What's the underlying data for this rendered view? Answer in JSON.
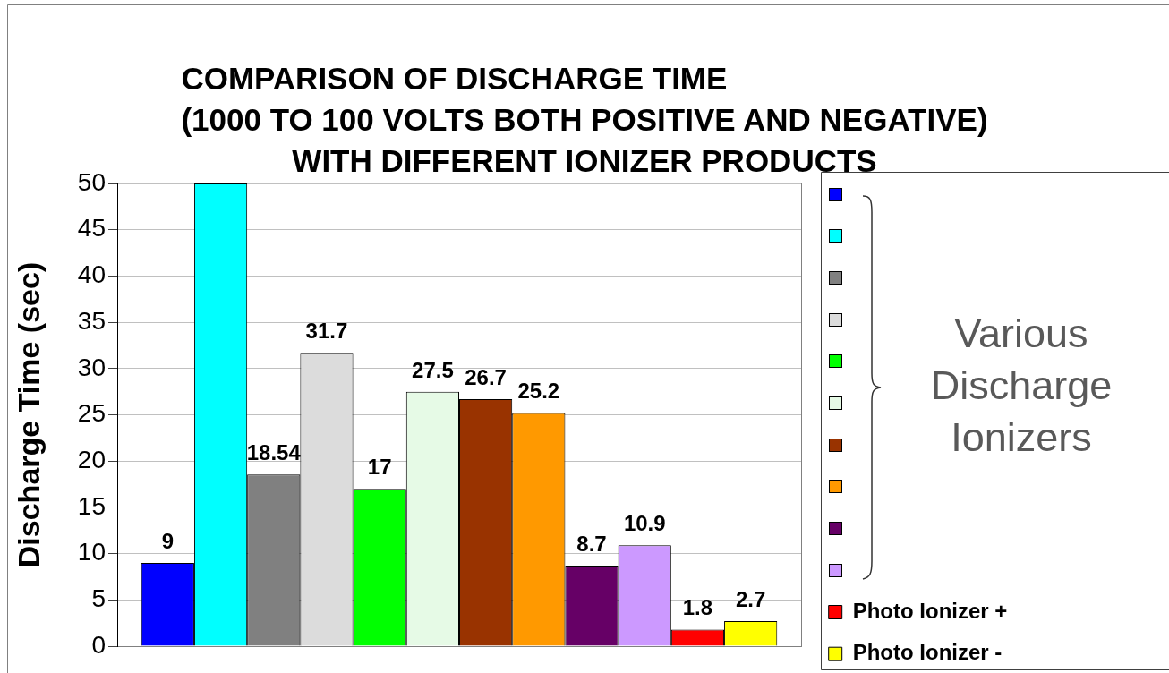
{
  "chart_data": {
    "type": "bar",
    "title": "COMPARISON OF DISCHARGE TIME\n(1000 TO 100 VOLTS BOTH POSITIVE AND NEGATIVE)\nWITH DIFFERENT IONIZER PRODUCTS",
    "ylabel": "Discharge Time (sec)",
    "categories": [
      null
    ],
    "series": [
      {
        "color": "#0000ff",
        "values": [
          9
        ],
        "value_labels": [
          "9"
        ]
      },
      {
        "color": "#00ffff",
        "values": [
          50
        ],
        "value_labels": [
          null
        ]
      },
      {
        "color": "#808080",
        "values": [
          18.54
        ],
        "value_labels": [
          "18.54"
        ]
      },
      {
        "color": "#dcdcdc",
        "values": [
          31.7
        ],
        "value_labels": [
          "31.7"
        ]
      },
      {
        "color": "#00ff00",
        "values": [
          17
        ],
        "value_labels": [
          "17"
        ]
      },
      {
        "color": "#e6fae6",
        "values": [
          27.5
        ],
        "value_labels": [
          "27.5"
        ]
      },
      {
        "color": "#993300",
        "values": [
          26.7
        ],
        "value_labels": [
          "26.7"
        ]
      },
      {
        "color": "#ff9900",
        "values": [
          25.2
        ],
        "value_labels": [
          "25.2"
        ]
      },
      {
        "color": "#660066",
        "values": [
          8.7
        ],
        "value_labels": [
          "8.7"
        ]
      },
      {
        "color": "#cc99ff",
        "values": [
          10.9
        ],
        "value_labels": [
          "10.9"
        ]
      },
      {
        "name": "Photo Ionizer +",
        "color": "#ff0000",
        "values": [
          1.8
        ],
        "value_labels": [
          "1.8"
        ]
      },
      {
        "name": "Photo Ionizer -",
        "color": "#ffff00",
        "values": [
          2.7
        ],
        "value_labels": [
          "2.7"
        ]
      }
    ],
    "ylim": [
      0,
      50
    ],
    "yticks": [
      0,
      5,
      10,
      15,
      20,
      25,
      30,
      35,
      40,
      45,
      50
    ],
    "grid": "y",
    "legend": "right",
    "tick_labels": "y",
    "annotations": [
      "Various Discharge Ionizers"
    ]
  }
}
